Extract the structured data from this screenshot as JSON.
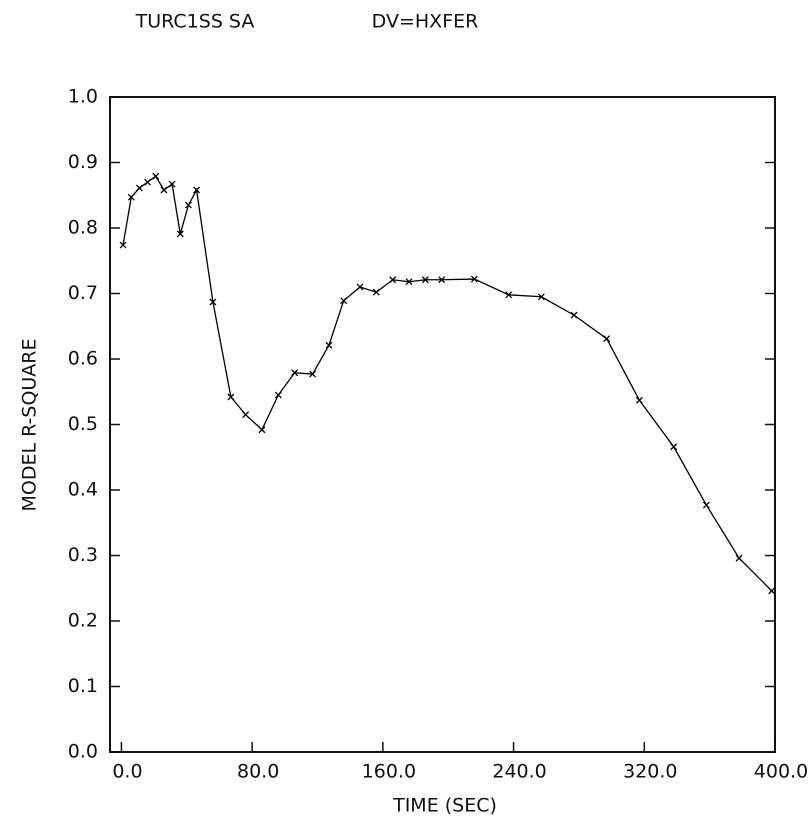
{
  "chart_data": {
    "type": "line",
    "title": "TURC1SS SA",
    "subtitle": "DV=HXFER",
    "x_label": "TIME (SEC)",
    "y_label": "MODEL R-SQUARE",
    "xlim": [
      -7,
      400
    ],
    "ylim": [
      0,
      1
    ],
    "xticks": [
      {
        "value": 0,
        "label": "0.0"
      },
      {
        "value": 80,
        "label": "80.0"
      },
      {
        "value": 160,
        "label": "160.0"
      },
      {
        "value": 240,
        "label": "240.0"
      },
      {
        "value": 320,
        "label": "320.0"
      },
      {
        "value": 400,
        "label": "400.0"
      }
    ],
    "yticks": [
      {
        "value": 0,
        "label": "0.0"
      },
      0.1,
      0.2,
      0.3,
      0.4,
      0.5,
      0.6,
      0.7,
      0.8,
      0.9,
      {
        "value": 1,
        "label": "1.0"
      }
    ],
    "grid": false,
    "color": "#000000",
    "x": [
      1,
      6,
      11,
      16,
      21,
      26,
      31,
      36,
      41,
      46,
      56,
      67,
      76,
      86,
      96,
      106,
      117,
      127,
      136,
      146,
      156,
      166,
      176,
      186,
      196,
      216,
      237,
      257,
      277,
      297,
      317,
      338,
      358,
      378,
      398
    ],
    "values": [
      0.774,
      0.847,
      0.861,
      0.87,
      0.879,
      0.858,
      0.867,
      0.791,
      0.835,
      0.858,
      0.687,
      0.542,
      0.515,
      0.492,
      0.545,
      0.579,
      0.577,
      0.621,
      0.689,
      0.71,
      0.702,
      0.721,
      0.718,
      0.721,
      0.721,
      0.722,
      0.698,
      0.695,
      0.667,
      0.631,
      0.537,
      0.466,
      0.377,
      0.296,
      0.246
    ]
  }
}
